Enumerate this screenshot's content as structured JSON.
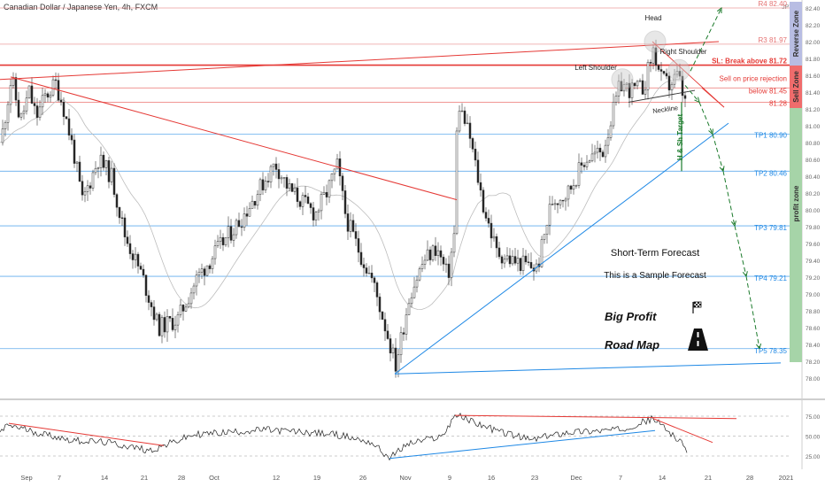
{
  "header": {
    "symbol": "Canadian Dollar / Japanese Yen, 4h, FXCM",
    "currency": "JPY"
  },
  "colors": {
    "red": "#e53935",
    "blue": "#1e88e5",
    "green": "#1b7a2b",
    "candle_up": "#ffffff",
    "candle_down": "#222222",
    "sell_zone": "#f06c6c",
    "reverse_zone": "#b8bde3",
    "profit_zone": "#a6d4a8"
  },
  "chart_data": [
    {
      "type": "candlestick",
      "title": "",
      "ylim": [
        77.9,
        82.5
      ],
      "y_ticks": [
        "78.00",
        "78.20",
        "78.40",
        "78.60",
        "78.80",
        "79.00",
        "79.20",
        "79.40",
        "79.60",
        "79.80",
        "80.00",
        "80.20",
        "80.40",
        "80.60",
        "80.80",
        "81.00",
        "81.20",
        "81.40",
        "81.60",
        "81.80",
        "82.00",
        "82.20",
        "82.40"
      ],
      "x_ticks": [
        "Sep",
        "7",
        "14",
        "21",
        "28",
        "Oct",
        "12",
        "19",
        "26",
        "Nov",
        "9",
        "16",
        "23",
        "Dec",
        "7",
        "14",
        "21",
        "28",
        "2021"
      ],
      "price_anchors": [
        {
          "x": 0,
          "y": 80.8
        },
        {
          "x": 12,
          "y": 81.58
        },
        {
          "x": 22,
          "y": 81.05
        },
        {
          "x": 32,
          "y": 81.4
        },
        {
          "x": 40,
          "y": 81.1
        },
        {
          "x": 50,
          "y": 81.35
        },
        {
          "x": 62,
          "y": 81.5
        },
        {
          "x": 70,
          "y": 81.25
        },
        {
          "x": 82,
          "y": 80.7
        },
        {
          "x": 92,
          "y": 80.1
        },
        {
          "x": 110,
          "y": 80.6
        },
        {
          "x": 125,
          "y": 80.4
        },
        {
          "x": 140,
          "y": 79.7
        },
        {
          "x": 160,
          "y": 79.2
        },
        {
          "x": 178,
          "y": 78.6
        },
        {
          "x": 200,
          "y": 78.7
        },
        {
          "x": 222,
          "y": 79.2
        },
        {
          "x": 250,
          "y": 79.6
        },
        {
          "x": 272,
          "y": 79.9
        },
        {
          "x": 295,
          "y": 80.3
        },
        {
          "x": 310,
          "y": 80.55
        },
        {
          "x": 325,
          "y": 80.25
        },
        {
          "x": 340,
          "y": 80.1
        },
        {
          "x": 355,
          "y": 79.95
        },
        {
          "x": 368,
          "y": 80.2
        },
        {
          "x": 380,
          "y": 80.52
        },
        {
          "x": 390,
          "y": 79.9
        },
        {
          "x": 405,
          "y": 79.5
        },
        {
          "x": 420,
          "y": 79.15
        },
        {
          "x": 432,
          "y": 78.7
        },
        {
          "x": 446,
          "y": 78.15
        },
        {
          "x": 462,
          "y": 79.0
        },
        {
          "x": 478,
          "y": 79.4
        },
        {
          "x": 492,
          "y": 79.55
        },
        {
          "x": 505,
          "y": 79.2
        },
        {
          "x": 512,
          "y": 79.7
        },
        {
          "x": 516,
          "y": 81.3
        },
        {
          "x": 530,
          "y": 80.85
        },
        {
          "x": 545,
          "y": 80.05
        },
        {
          "x": 560,
          "y": 79.5
        },
        {
          "x": 576,
          "y": 79.4
        },
        {
          "x": 592,
          "y": 79.35
        },
        {
          "x": 606,
          "y": 79.3
        },
        {
          "x": 622,
          "y": 80.1
        },
        {
          "x": 640,
          "y": 80.2
        },
        {
          "x": 660,
          "y": 80.6
        },
        {
          "x": 680,
          "y": 80.7
        },
        {
          "x": 700,
          "y": 81.5
        },
        {
          "x": 712,
          "y": 81.42
        },
        {
          "x": 726,
          "y": 81.45
        },
        {
          "x": 737,
          "y": 81.9
        },
        {
          "x": 746,
          "y": 81.55
        },
        {
          "x": 755,
          "y": 81.48
        },
        {
          "x": 765,
          "y": 81.6
        },
        {
          "x": 774,
          "y": 81.22
        }
      ],
      "horizontal_levels": [
        {
          "label": "R4 82.40",
          "y": 82.4,
          "color": "#e57373"
        },
        {
          "label": "R3 81.97",
          "y": 81.97,
          "color": "#e57373"
        },
        {
          "label": "SL: Break above 81.72",
          "y": 81.72,
          "color": "#e53935"
        },
        {
          "label": "Sell on price rejection",
          "y": 81.45,
          "color": "#e53935"
        },
        {
          "label": "below 81.45",
          "y": 81.45,
          "color": "#e53935"
        },
        {
          "label": "81.28",
          "y": 81.28,
          "color": "#e53935"
        },
        {
          "label": "TP1 80.90",
          "y": 80.9,
          "color": "#1e88e5"
        },
        {
          "label": "TP2 80.46",
          "y": 80.46,
          "color": "#1e88e5"
        },
        {
          "label": "TP3 79.81",
          "y": 79.81,
          "color": "#1e88e5"
        },
        {
          "label": "TP4 79.21",
          "y": 79.21,
          "color": "#1e88e5"
        },
        {
          "label": "TP5 78.35",
          "y": 78.35,
          "color": "#1e88e5"
        }
      ],
      "zones": [
        "Reverse Zone",
        "Sell Zone",
        "profit zone"
      ],
      "annotations": [
        "Head",
        "Left Shoulder",
        "Right Shoulder",
        "Neckline",
        "H & Sh Target",
        "Short-Term Forecast",
        "This is a Sample Forecast",
        "Big Profit",
        "Road Map"
      ]
    },
    {
      "type": "line",
      "name": "oscillator",
      "ylim": [
        20,
        80
      ],
      "y_ticks": [
        "75.00",
        "50.00",
        "25.00"
      ],
      "anchors": [
        {
          "x": 0,
          "y": 55
        },
        {
          "x": 10,
          "y": 64
        },
        {
          "x": 40,
          "y": 55
        },
        {
          "x": 80,
          "y": 45
        },
        {
          "x": 120,
          "y": 42
        },
        {
          "x": 170,
          "y": 32
        },
        {
          "x": 220,
          "y": 52
        },
        {
          "x": 300,
          "y": 58
        },
        {
          "x": 380,
          "y": 52
        },
        {
          "x": 420,
          "y": 42
        },
        {
          "x": 440,
          "y": 22
        },
        {
          "x": 460,
          "y": 40
        },
        {
          "x": 500,
          "y": 50
        },
        {
          "x": 514,
          "y": 77
        },
        {
          "x": 560,
          "y": 57
        },
        {
          "x": 600,
          "y": 45
        },
        {
          "x": 640,
          "y": 55
        },
        {
          "x": 700,
          "y": 58
        },
        {
          "x": 738,
          "y": 72
        },
        {
          "x": 760,
          "y": 52
        },
        {
          "x": 776,
          "y": 33
        }
      ]
    }
  ]
}
